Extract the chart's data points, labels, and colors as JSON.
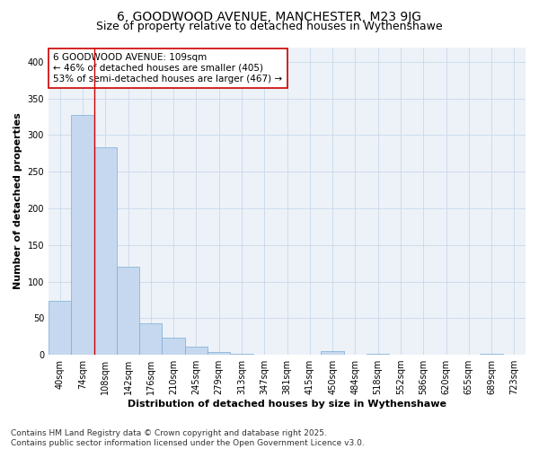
{
  "title1": "6, GOODWOOD AVENUE, MANCHESTER, M23 9JG",
  "title2": "Size of property relative to detached houses in Wythenshawe",
  "xlabel": "Distribution of detached houses by size in Wythenshawe",
  "ylabel": "Number of detached properties",
  "categories": [
    "40sqm",
    "74sqm",
    "108sqm",
    "142sqm",
    "176sqm",
    "210sqm",
    "245sqm",
    "279sqm",
    "313sqm",
    "347sqm",
    "381sqm",
    "415sqm",
    "450sqm",
    "484sqm",
    "518sqm",
    "552sqm",
    "586sqm",
    "620sqm",
    "655sqm",
    "689sqm",
    "723sqm"
  ],
  "values": [
    74,
    327,
    283,
    120,
    43,
    24,
    11,
    4,
    1,
    0,
    0,
    0,
    5,
    0,
    1,
    0,
    0,
    0,
    0,
    1,
    0
  ],
  "bar_color": "#c5d8ef",
  "bar_edge_color": "#7aadd4",
  "grid_color": "#c8d8ea",
  "bg_color": "#edf2f8",
  "redline_bar_index": 2,
  "annotation_text": "6 GOODWOOD AVENUE: 109sqm\n← 46% of detached houses are smaller (405)\n53% of semi-detached houses are larger (467) →",
  "annotation_box_facecolor": "#ffffff",
  "annotation_box_edgecolor": "#cc0000",
  "ylim": [
    0,
    420
  ],
  "yticks": [
    0,
    50,
    100,
    150,
    200,
    250,
    300,
    350,
    400
  ],
  "footnote": "Contains HM Land Registry data © Crown copyright and database right 2025.\nContains public sector information licensed under the Open Government Licence v3.0.",
  "title1_fontsize": 10,
  "title2_fontsize": 9,
  "axis_label_fontsize": 8,
  "tick_fontsize": 7,
  "annotation_fontsize": 7.5,
  "footnote_fontsize": 6.5
}
